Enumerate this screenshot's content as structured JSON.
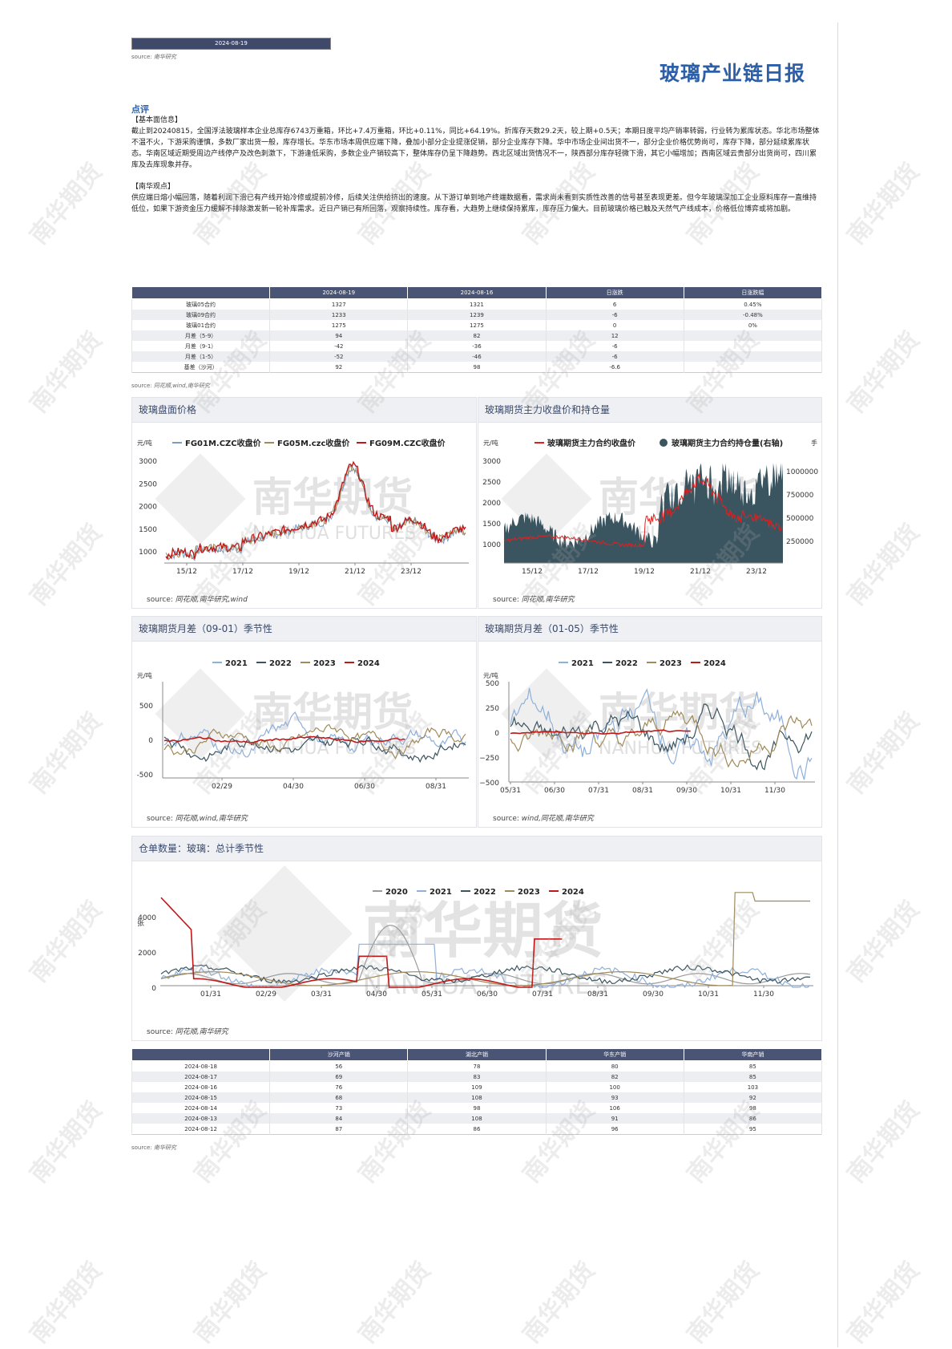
{
  "header": {
    "date": "2024-08-19",
    "source_prefix": "source:",
    "source_name": "南华研究",
    "title": "玻璃产业链日报"
  },
  "comment": {
    "heading": "点评",
    "basic_title": "【基本面信息】",
    "basic_text": "截止到20240815，全国浮法玻璃样本企业总库存6743万重箱，环比+7.4万重箱，环比+0.11%，同比+64.19%。折库存天数29.2天，较上期+0.5天；本期日度平均产销率转弱，行业转为累库状态。华北市场整体不温不火，下游采购谨慎，多数厂家出货一般，库存增长。华东市场本周供应端下降，叠加小部分企业提涨促销，部分企业库存下降。华中市场企业间出货不一，部分企业价格优势尚可，库存下降，部分延续累库状态。华南区域近期受周边产线停产及改色刺激下，下游逢低采购，多数企业产销较高下，整体库存仍呈下降趋势。西北区域出货情况不一，陕西部分库存轻微下滑，其它小幅增加；西南区域云贵部分出货尚可，四川累库及去库现象并存。",
    "view_title": "【南华观点】",
    "view_text": "供应端日熔小幅回落，随着利润下滑已有产线开始冷修或提前冷修，后续关注供给挤出的速度。从下游订单到地产终端数据看，需求尚未看到实质性改善的信号甚至表现更差。但今年玻璃深加工企业原料库存一直维持低位，如果下游资金压力缓解不排除激发新一轮补库需求。近日产销已有所回落，观察持续性。库存看，大趋势上继续保持累库，库存压力偏大。目前玻璃价格已触及天然气产线成本，价格低位博弈或将加剧。"
  },
  "price_table": {
    "headers": [
      "",
      "2024-08-19",
      "2024-08-16",
      "日涨跌",
      "日涨跌幅"
    ],
    "rows": [
      [
        "玻璃05合约",
        "1327",
        "1321",
        "6",
        "0.45%"
      ],
      [
        "玻璃09合约",
        "1233",
        "1239",
        "-6",
        "-0.48%"
      ],
      [
        "玻璃01合约",
        "1275",
        "1275",
        "0",
        "0%"
      ],
      [
        "月差（5-9）",
        "94",
        "82",
        "12",
        ""
      ],
      [
        "月差（9-1）",
        "-42",
        "-36",
        "-6",
        ""
      ],
      [
        "月差（1-5）",
        "-52",
        "-46",
        "-6",
        ""
      ],
      [
        "基差（沙河）",
        "92",
        "98",
        "-6.6",
        ""
      ]
    ],
    "source_prefix": "source:",
    "source_name": "同花顺,wind,南华研究"
  },
  "watermark_logo": {
    "cn": "南华期货",
    "en": "NANHUA FUTURES",
    "stamp": "南华期货"
  },
  "charts": {
    "c1": {
      "title": "玻璃盘面价格",
      "unit": "元/吨",
      "yticks": [
        "3000",
        "2500",
        "2000",
        "1500",
        "1000"
      ],
      "xticks": [
        "15/12",
        "17/12",
        "19/12",
        "21/12",
        "23/12"
      ],
      "legend": [
        "FG01M.CZC收盘价",
        "FG05M.czc收盘价",
        "FG09M.CZC收盘价"
      ],
      "colors": [
        "#7a9cc6",
        "#a08a5a",
        "#c01818"
      ],
      "source": "source:",
      "source_name": "同花顺,南华研究,wind"
    },
    "c2": {
      "title": "玻璃期货主力收盘价和持仓量",
      "unit_left": "元/吨",
      "unit_right": "手",
      "yticks": [
        "3000",
        "2500",
        "2000",
        "1500",
        "1000"
      ],
      "yticks_right": [
        "1000000",
        "750000",
        "500000",
        "250000"
      ],
      "xticks": [
        "15/12",
        "17/12",
        "19/12",
        "21/12",
        "23/12"
      ],
      "legend": [
        "玻璃期货主力合约收盘价",
        "玻璃期货主力合约持仓量(右轴)"
      ],
      "colors": [
        "#e02020",
        "#3b5560"
      ],
      "source": "source:",
      "source_name": "同花顺,南华研究"
    },
    "c3": {
      "title": "玻璃期货月差（09-01）季节性",
      "unit": "元/吨",
      "yticks": [
        "500",
        "0",
        "-500"
      ],
      "xticks": [
        "02/29",
        "04/30",
        "06/30",
        "08/31"
      ],
      "legend": [
        "2021",
        "2022",
        "2023",
        "2024"
      ],
      "colors": [
        "#8fb0da",
        "#3b5560",
        "#a08a5a",
        "#c01818"
      ],
      "source": "source:",
      "source_name": "同花顺,wind,南华研究"
    },
    "c4": {
      "title": "玻璃期货月差（01-05）季节性",
      "unit": "元/吨",
      "yticks": [
        "500",
        "250",
        "0",
        "−250",
        "−500"
      ],
      "xticks": [
        "05/31",
        "06/30",
        "07/31",
        "08/31",
        "09/30",
        "10/31",
        "11/30"
      ],
      "legend": [
        "2021",
        "2022",
        "2023",
        "2024"
      ],
      "colors": [
        "#8fb0da",
        "#3b5560",
        "#a08a5a",
        "#c01818"
      ],
      "source": "source:",
      "source_name": "wind,同花顺,南华研究"
    },
    "c5": {
      "title": "仓单数量：玻璃：总计季节性",
      "unit": "张",
      "yticks": [
        "4000",
        "2000",
        "0"
      ],
      "xticks": [
        "01/31",
        "02/29",
        "03/31",
        "04/30",
        "05/31",
        "06/30",
        "07/31",
        "08/31",
        "09/30",
        "10/31",
        "11/30"
      ],
      "legend": [
        "2020",
        "2021",
        "2022",
        "2023",
        "2024"
      ],
      "colors": [
        "#9a9a9a",
        "#8fb0da",
        "#3b5560",
        "#a08a5a",
        "#c01818"
      ],
      "source": "source:",
      "source_name": "同花顺,南华研究"
    }
  },
  "sales_table": {
    "headers": [
      "",
      "沙河产销",
      "湖北产销",
      "华东产销",
      "华南产销"
    ],
    "rows": [
      [
        "2024-08-18",
        "56",
        "78",
        "80",
        "85"
      ],
      [
        "2024-08-17",
        "69",
        "83",
        "82",
        "85"
      ],
      [
        "2024-08-16",
        "76",
        "109",
        "100",
        "103"
      ],
      [
        "2024-08-15",
        "68",
        "108",
        "93",
        "92"
      ],
      [
        "2024-08-14",
        "73",
        "98",
        "106",
        "98"
      ],
      [
        "2024-08-13",
        "84",
        "108",
        "91",
        "86"
      ],
      [
        "2024-08-12",
        "87",
        "86",
        "96",
        "95"
      ]
    ],
    "source_prefix": "source:",
    "source_name": "南华研究"
  }
}
